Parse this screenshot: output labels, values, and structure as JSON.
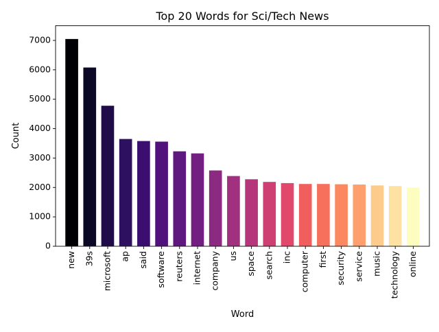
{
  "chart_data": {
    "type": "bar",
    "title": "Top 20 Words for Sci/Tech News",
    "xlabel": "Word",
    "ylabel": "Count",
    "ylim": [
      0,
      7500
    ],
    "yticks": [
      0,
      1000,
      2000,
      3000,
      4000,
      5000,
      6000,
      7000
    ],
    "grid": false,
    "categories": [
      "new",
      "39s",
      "microsoft",
      "ap",
      "said",
      "software",
      "reuters",
      "internet",
      "company",
      "us",
      "space",
      "search",
      "inc",
      "computer",
      "first",
      "security",
      "service",
      "music",
      "technology",
      "online"
    ],
    "values": [
      7060,
      6090,
      4790,
      3660,
      3590,
      3570,
      3240,
      3170,
      2590,
      2400,
      2290,
      2200,
      2160,
      2130,
      2130,
      2120,
      2110,
      2080,
      2060,
      2010
    ],
    "colors": [
      "#000004",
      "#0c0926",
      "#1f0c48",
      "#2d1160",
      "#3b0f70",
      "#51127c",
      "#5f187f",
      "#721f81",
      "#8c2981",
      "#a1307e",
      "#b5367a",
      "#cd4071",
      "#e0496c",
      "#f05f5e",
      "#f7705c",
      "#fb8861",
      "#fe9f6d",
      "#fdcb8b",
      "#fde2a3",
      "#fcfdbf"
    ]
  }
}
